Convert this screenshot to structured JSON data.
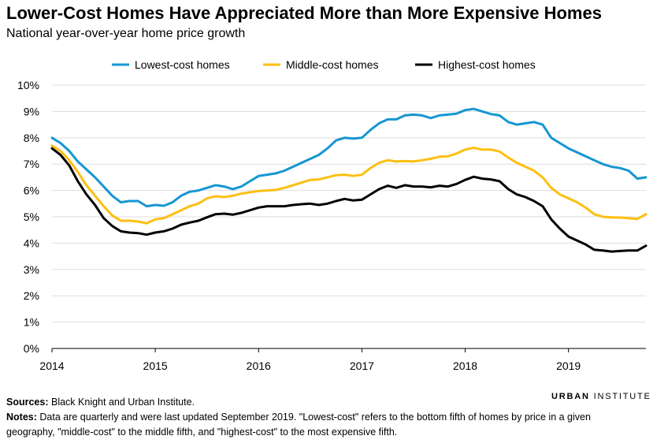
{
  "title": "Lower-Cost Homes Have Appreciated More than More Expensive Homes",
  "subtitle": "National year-over-year home price growth",
  "sources_label": "Sources:",
  "sources_text": "Black Knight and Urban Institute.",
  "notes_label": "Notes:",
  "notes_text": "Data are quarterly and were last updated September 2019. \"Lowest-cost\" refers to the bottom fifth of homes by price in a given geography, \"middle-cost\" to the middle fifth, and \"highest-cost\" to the most expensive fifth.",
  "brand": {
    "first": "URBAN",
    "second": "INSTITUTE"
  },
  "colors": {
    "lowest": "#1696d2",
    "middle": "#fdbf11",
    "highest": "#000000",
    "grid": "#dedede"
  },
  "chart_data": {
    "type": "line",
    "title": "Lower-Cost Homes Have Appreciated More than More Expensive Homes",
    "xlabel": "",
    "ylabel": "",
    "xlim": [
      2014,
      2019.75
    ],
    "ylim": [
      0,
      10
    ],
    "legend_position": "top-center",
    "grid": true,
    "y_ticks": [
      0,
      1,
      2,
      3,
      4,
      5,
      6,
      7,
      8,
      9,
      10
    ],
    "y_tick_labels": [
      "0%",
      "1%",
      "2%",
      "3%",
      "4%",
      "5%",
      "6%",
      "7%",
      "8%",
      "9%",
      "10%"
    ],
    "x_ticks": [
      2014,
      2015,
      2016,
      2017,
      2018,
      2019
    ],
    "x_tick_labels": [
      "2014",
      "2015",
      "2016",
      "2017",
      "2018",
      "2019"
    ],
    "x": [
      2014.0,
      2014.0833,
      2014.1667,
      2014.25,
      2014.3333,
      2014.4167,
      2014.5,
      2014.5833,
      2014.6667,
      2014.75,
      2014.8333,
      2014.9167,
      2015.0,
      2015.0833,
      2015.1667,
      2015.25,
      2015.3333,
      2015.4167,
      2015.5,
      2015.5833,
      2015.6667,
      2015.75,
      2015.8333,
      2015.9167,
      2016.0,
      2016.0833,
      2016.1667,
      2016.25,
      2016.3333,
      2016.4167,
      2016.5,
      2016.5833,
      2016.6667,
      2016.75,
      2016.8333,
      2016.9167,
      2017.0,
      2017.0833,
      2017.1667,
      2017.25,
      2017.3333,
      2017.4167,
      2017.5,
      2017.5833,
      2017.6667,
      2017.75,
      2017.8333,
      2017.9167,
      2018.0,
      2018.0833,
      2018.1667,
      2018.25,
      2018.3333,
      2018.4167,
      2018.5,
      2018.5833,
      2018.6667,
      2018.75,
      2018.8333,
      2018.9167,
      2019.0,
      2019.0833,
      2019.1667,
      2019.25,
      2019.3333,
      2019.4167,
      2019.5,
      2019.5833,
      2019.6667,
      2019.75
    ],
    "series": [
      {
        "name": "Lowest-cost homes",
        "color": "#1696d2",
        "values": [
          8.0,
          7.8,
          7.5,
          7.1,
          6.8,
          6.5,
          6.15,
          5.8,
          5.55,
          5.6,
          5.6,
          5.4,
          5.45,
          5.42,
          5.55,
          5.8,
          5.95,
          6.0,
          6.1,
          6.2,
          6.15,
          6.05,
          6.15,
          6.35,
          6.55,
          6.6,
          6.65,
          6.75,
          6.9,
          7.05,
          7.2,
          7.35,
          7.6,
          7.9,
          8.0,
          7.97,
          8.0,
          8.3,
          8.55,
          8.7,
          8.7,
          8.85,
          8.88,
          8.85,
          8.75,
          8.85,
          8.88,
          8.92,
          9.05,
          9.1,
          9.0,
          8.9,
          8.85,
          8.6,
          8.5,
          8.55,
          8.6,
          8.5,
          8.0,
          7.8,
          7.6,
          7.45,
          7.3,
          7.15,
          7.0,
          6.9,
          6.85,
          6.75,
          6.45,
          6.5
        ]
      },
      {
        "name": "Middle-cost homes",
        "color": "#fdbf11",
        "values": [
          7.7,
          7.5,
          7.15,
          6.7,
          6.2,
          5.8,
          5.4,
          5.05,
          4.85,
          4.85,
          4.82,
          4.75,
          4.9,
          4.95,
          5.1,
          5.25,
          5.4,
          5.5,
          5.7,
          5.78,
          5.75,
          5.8,
          5.88,
          5.93,
          5.98,
          6.0,
          6.02,
          6.1,
          6.2,
          6.3,
          6.4,
          6.42,
          6.5,
          6.58,
          6.6,
          6.55,
          6.6,
          6.85,
          7.05,
          7.15,
          7.1,
          7.12,
          7.1,
          7.15,
          7.2,
          7.28,
          7.3,
          7.4,
          7.55,
          7.62,
          7.55,
          7.55,
          7.48,
          7.25,
          7.05,
          6.9,
          6.75,
          6.5,
          6.1,
          5.85,
          5.7,
          5.55,
          5.35,
          5.1,
          5.0,
          4.98,
          4.97,
          4.95,
          4.92,
          5.1
        ]
      },
      {
        "name": "Highest-cost homes",
        "color": "#000000",
        "values": [
          7.6,
          7.35,
          6.95,
          6.35,
          5.85,
          5.45,
          4.95,
          4.65,
          4.45,
          4.4,
          4.38,
          4.32,
          4.4,
          4.45,
          4.55,
          4.7,
          4.78,
          4.85,
          4.98,
          5.1,
          5.12,
          5.08,
          5.15,
          5.25,
          5.35,
          5.4,
          5.4,
          5.4,
          5.45,
          5.48,
          5.5,
          5.45,
          5.5,
          5.6,
          5.68,
          5.62,
          5.65,
          5.85,
          6.05,
          6.18,
          6.1,
          6.2,
          6.15,
          6.15,
          6.12,
          6.18,
          6.15,
          6.25,
          6.4,
          6.52,
          6.45,
          6.42,
          6.35,
          6.05,
          5.85,
          5.75,
          5.6,
          5.4,
          4.9,
          4.55,
          4.25,
          4.1,
          3.95,
          3.75,
          3.72,
          3.68,
          3.7,
          3.72,
          3.72,
          3.9
        ]
      }
    ]
  }
}
